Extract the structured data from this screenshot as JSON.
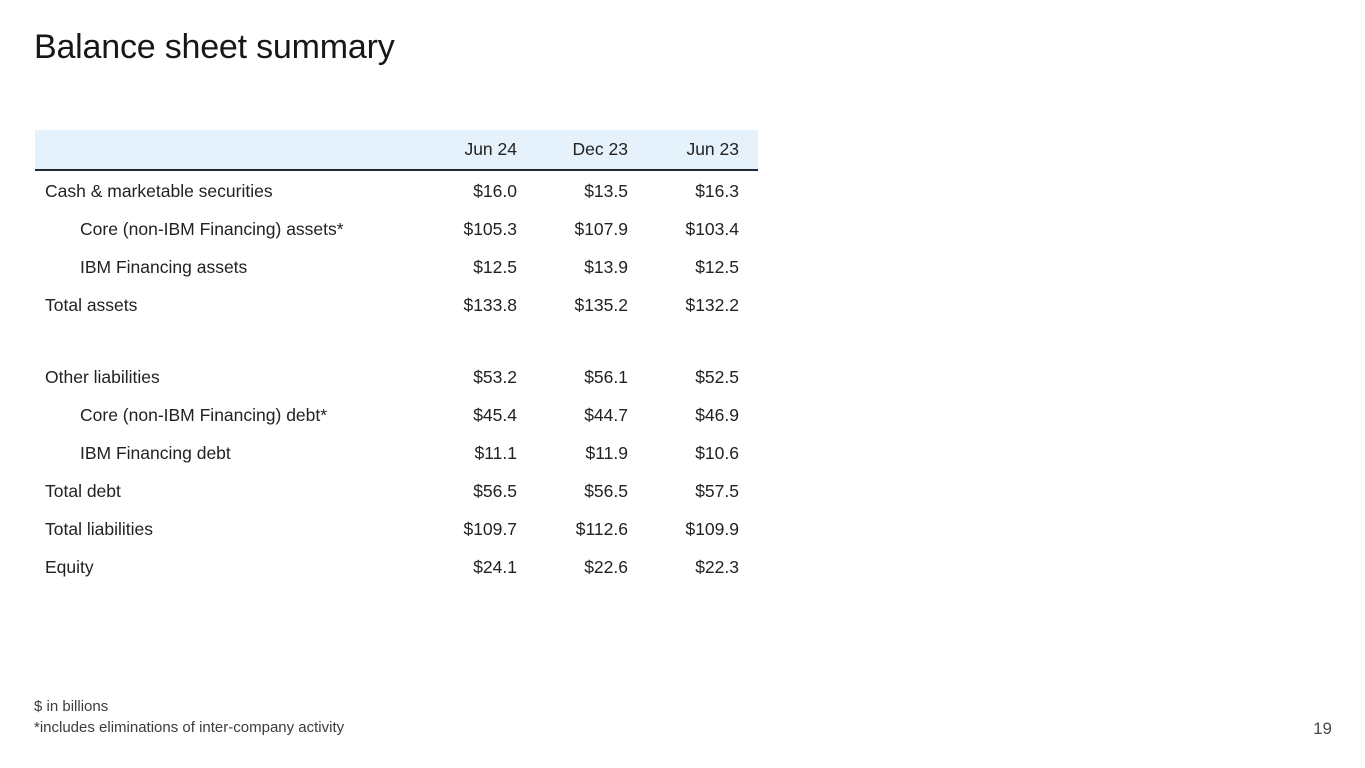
{
  "slide": {
    "title": "Balance sheet summary",
    "page_number": "19",
    "footnotes": {
      "units": "$ in billions",
      "asterisk": "*includes eliminations of inter-company activity"
    }
  },
  "chart_data": {
    "type": "table",
    "title": "Balance sheet summary",
    "units": "$ in billions",
    "columns": [
      "Jun 24",
      "Dec 23",
      "Jun 23"
    ],
    "sections": [
      {
        "rows": [
          {
            "label": "Cash & marketable securities",
            "indent": false,
            "values": [
              "$16.0",
              "$13.5",
              "$16.3"
            ]
          },
          {
            "label": "Core (non-IBM Financing) assets*",
            "indent": true,
            "values": [
              "$105.3",
              "$107.9",
              "$103.4"
            ]
          },
          {
            "label": "IBM Financing assets",
            "indent": true,
            "values": [
              "$12.5",
              "$13.9",
              "$12.5"
            ]
          },
          {
            "label": "Total assets",
            "indent": false,
            "values": [
              "$133.8",
              "$135.2",
              "$132.2"
            ]
          }
        ]
      },
      {
        "rows": [
          {
            "label": "Other liabilities",
            "indent": false,
            "values": [
              "$53.2",
              "$56.1",
              "$52.5"
            ]
          },
          {
            "label": "Core (non-IBM Financing) debt*",
            "indent": true,
            "values": [
              "$45.4",
              "$44.7",
              "$46.9"
            ]
          },
          {
            "label": "IBM Financing debt",
            "indent": true,
            "values": [
              "$11.1",
              "$11.9",
              "$10.6"
            ]
          },
          {
            "label": "Total debt",
            "indent": false,
            "values": [
              "$56.5",
              "$56.5",
              "$57.5"
            ]
          },
          {
            "label": "Total liabilities",
            "indent": false,
            "values": [
              "$109.7",
              "$112.6",
              "$109.9"
            ]
          },
          {
            "label": "Equity",
            "indent": false,
            "values": [
              "$24.1",
              "$22.6",
              "$22.3"
            ]
          }
        ]
      }
    ]
  },
  "colors": {
    "header_bg": "#e5f2fb",
    "header_border": "#1e2936",
    "text": "#222222",
    "title": "#171717",
    "muted": "#3c3c3c",
    "page_num": "#4a4a4a",
    "slide_bg": "#ffffff"
  }
}
